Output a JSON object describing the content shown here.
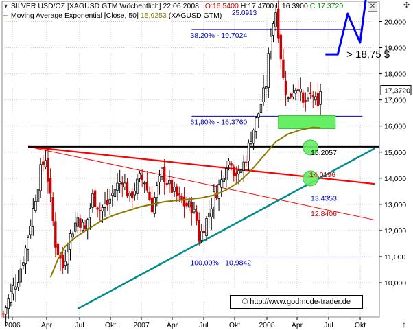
{
  "header": {
    "line1_prefix": "SILVER USD/OZ [XAGUSD GTM  Wöchentlich] 22.06.2008 : ",
    "open": "O:16.5400",
    "high": "H:17.4700",
    "low": "L:16.3900",
    "close": "C:17.3720",
    "line2": "Moving Average Exponential [Close, 50]",
    "ema_value": "15,9253",
    "line2_suffix": "(XAGUSD GTM)",
    "top_value": "25.0913"
  },
  "colors": {
    "candle_up": "#000000",
    "candle_down": "#cc0000",
    "ema": "#8a7a00",
    "fib": "#0000cc",
    "support": "#000000",
    "red_trend": "#ff0000",
    "teal_trend": "#008b8b",
    "projection": "#0000ff",
    "target_zone": "#66ee66",
    "header_open": "#cc0000",
    "header_close": "#008800",
    "header_ema": "#8a7a00",
    "grid": "#cccccc"
  },
  "chart_data": {
    "type": "candlestick",
    "title": "SILVER USD/OZ [XAGUSD GTM  Wöchentlich]",
    "ylim": [
      9.0,
      25.0
    ],
    "y_ticks": [
      10000,
      11000,
      12000,
      13000,
      14000,
      15000,
      16000,
      17000,
      18000,
      19000,
      20000,
      21000,
      22000,
      23000,
      24000
    ],
    "y_tick_labels": [
      "10,000",
      "11,000",
      "12,000",
      "13,000",
      "14,000",
      "15,000",
      "16,000",
      "17,000",
      "18,000",
      "19,000",
      "20,000",
      "21,000",
      "22,000",
      "23,000",
      "24,000"
    ],
    "x_tick_labels": [
      "2006",
      "Apr",
      "Jul",
      "Okt",
      "2007",
      "Apr",
      "Jul",
      "Okt",
      "2008",
      "Apr",
      "Jul",
      "Okt"
    ],
    "last_price_label": "17,3720",
    "ema_name": "Moving Average Exponential [Close, 50]",
    "fib_levels": [
      {
        "label": "38,20% - 19.7024",
        "value": 19.7024
      },
      {
        "label": "61,80% - 16.3760",
        "value": 16.376
      },
      {
        "label": "100,00% - 10.9842",
        "value": 10.9842
      }
    ],
    "level_labels": [
      {
        "text": "15.2057",
        "value": 15.2057
      },
      {
        "text": "14.0196",
        "value": 14.0196
      },
      {
        "text": "13.4353",
        "value": 13.4353
      },
      {
        "text": "12.8406",
        "value": 12.8406
      }
    ],
    "support_level": 15.2057,
    "annotation": "> 18,75 $",
    "price_path": [
      [
        0,
        8.8
      ],
      [
        3,
        9.6
      ],
      [
        6,
        10.2
      ],
      [
        9,
        11.3
      ],
      [
        12,
        12.8
      ],
      [
        15,
        14.3
      ],
      [
        17,
        14.8
      ],
      [
        19,
        13.2
      ],
      [
        21,
        11.5
      ],
      [
        24,
        10.6
      ],
      [
        27,
        11.8
      ],
      [
        30,
        12.5
      ],
      [
        33,
        12.0
      ],
      [
        36,
        13.3
      ],
      [
        39,
        12.8
      ],
      [
        42,
        13.0
      ],
      [
        45,
        13.6
      ],
      [
        48,
        14.0
      ],
      [
        51,
        13.2
      ],
      [
        52,
        13.4
      ],
      [
        55,
        14.0
      ],
      [
        57,
        13.9
      ],
      [
        60,
        12.9
      ],
      [
        62,
        13.6
      ],
      [
        64,
        14.2
      ],
      [
        67,
        13.7
      ],
      [
        70,
        13.3
      ],
      [
        73,
        13.0
      ],
      [
        76,
        12.9
      ],
      [
        78,
        12.4
      ],
      [
        79,
        11.7
      ],
      [
        82,
        12.4
      ],
      [
        85,
        13.3
      ],
      [
        88,
        13.9
      ],
      [
        90,
        14.6
      ],
      [
        92,
        14.7
      ],
      [
        93,
        14.3
      ],
      [
        95,
        14.1
      ],
      [
        98,
        14.8
      ],
      [
        100,
        15.6
      ],
      [
        103,
        16.5
      ],
      [
        106,
        17.6
      ],
      [
        108,
        19.6
      ],
      [
        110,
        20.4
      ],
      [
        111,
        19.6
      ],
      [
        113,
        17.8
      ],
      [
        115,
        17.0
      ],
      [
        117,
        17.4
      ],
      [
        119,
        17.6
      ],
      [
        121,
        16.8
      ],
      [
        123,
        17.1
      ],
      [
        125,
        17.2
      ],
      [
        127,
        16.6
      ],
      [
        128,
        17.4
      ]
    ],
    "ema_path": [
      [
        19,
        10.2
      ],
      [
        22,
        10.9
      ],
      [
        25,
        11.4
      ],
      [
        30,
        11.8
      ],
      [
        35,
        12.1
      ],
      [
        40,
        12.4
      ],
      [
        45,
        12.6
      ],
      [
        50,
        12.75
      ],
      [
        55,
        12.9
      ],
      [
        60,
        13.0
      ],
      [
        65,
        13.1
      ],
      [
        70,
        13.15
      ],
      [
        75,
        13.2
      ],
      [
        80,
        13.25
      ],
      [
        85,
        13.35
      ],
      [
        90,
        13.55
      ],
      [
        95,
        13.85
      ],
      [
        100,
        14.3
      ],
      [
        105,
        14.85
      ],
      [
        110,
        15.4
      ],
      [
        115,
        15.7
      ],
      [
        120,
        15.85
      ],
      [
        125,
        15.95
      ],
      [
        128,
        15.925
      ]
    ],
    "projection_path": [
      [
        130,
        18.75
      ],
      [
        135,
        18.75
      ],
      [
        139,
        20.3
      ],
      [
        144,
        19.2
      ],
      [
        151,
        24.2
      ]
    ],
    "red_thick_line": [
      [
        10,
        15.21
      ],
      [
        150,
        13.78
      ]
    ],
    "red_thin_line": [
      [
        10,
        15.21
      ],
      [
        150,
        12.4
      ]
    ],
    "teal_line": [
      [
        30,
        9.0
      ],
      [
        150,
        15.15
      ]
    ],
    "fib_x_range": [
      76,
      145
    ]
  },
  "watermark": "© http://www.godmode-trader.de"
}
